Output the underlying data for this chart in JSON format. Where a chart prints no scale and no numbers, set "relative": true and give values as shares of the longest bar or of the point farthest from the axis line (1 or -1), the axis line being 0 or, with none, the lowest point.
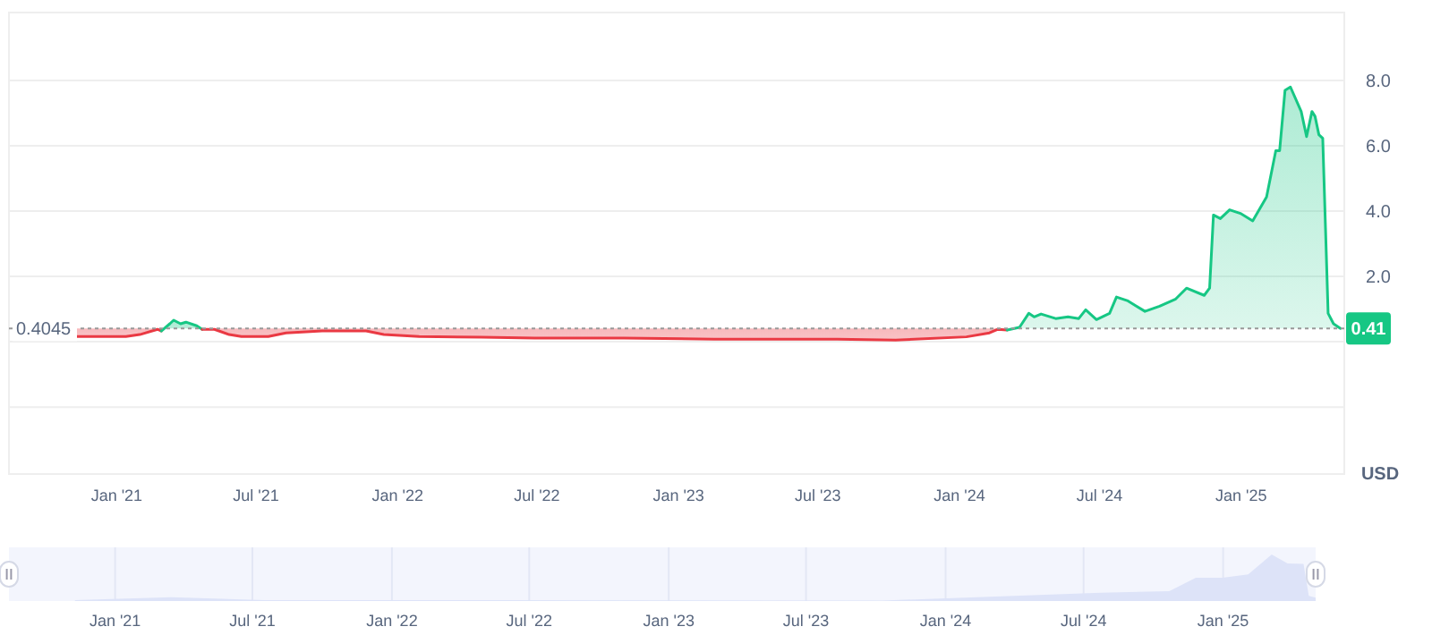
{
  "chart_data": [
    {
      "type": "line",
      "ylabel": "USD",
      "grid": "y",
      "series": [
        {
          "color": "#ea3943",
          "x": [
            "2020-11-09",
            "2021-01-13",
            "2021-01-31",
            "2021-02-23",
            "2021-02-28"
          ],
          "values": [
            0.16,
            0.16,
            0.22,
            0.38,
            0.33
          ],
          "lower": [
            0.16,
            0.16,
            0.22,
            0.38,
            0.33
          ],
          "upper": [
            0.4045,
            0.4045,
            0.4045,
            0.4045,
            0.4045
          ]
        },
        {
          "color": "#16c784",
          "x": [
            "2021-02-28",
            "2021-03-11",
            "2021-03-16",
            "2021-03-25",
            "2021-04-01",
            "2021-04-15",
            "2021-04-22"
          ],
          "values": [
            0.33,
            0.55,
            0.66,
            0.55,
            0.6,
            0.49,
            0.38
          ],
          "lower": [
            0.4045,
            0.4045,
            0.4045,
            0.4045,
            0.4045,
            0.4045,
            0.4045
          ],
          "upper": [
            0.33,
            0.55,
            0.66,
            0.55,
            0.6,
            0.49,
            0.38
          ]
        },
        {
          "color": "#ea3943",
          "x": [
            "2021-04-22",
            "2021-05-08",
            "2021-05-27",
            "2021-06-12",
            "2021-07-17",
            "2021-08-09",
            "2021-09-25",
            "2021-11-21",
            "2021-12-14",
            "2022-01-29",
            "2022-04-20",
            "2022-06-28",
            "2022-10-22",
            "2023-02-16",
            "2023-07-26",
            "2023-10-10",
            "2024-01-10",
            "2024-02-09",
            "2024-02-20",
            "2024-03-03"
          ],
          "values": [
            0.38,
            0.38,
            0.22,
            0.16,
            0.16,
            0.27,
            0.33,
            0.33,
            0.22,
            0.16,
            0.14,
            0.11,
            0.11,
            0.08,
            0.08,
            0.05,
            0.15,
            0.27,
            0.38,
            0.36
          ],
          "lower": [
            0.38,
            0.38,
            0.22,
            0.16,
            0.16,
            0.27,
            0.33,
            0.33,
            0.22,
            0.16,
            0.14,
            0.11,
            0.11,
            0.08,
            0.08,
            0.05,
            0.15,
            0.27,
            0.38,
            0.36
          ],
          "upper": [
            0.4045,
            0.4045,
            0.4045,
            0.4045,
            0.4045,
            0.4045,
            0.4045,
            0.4045,
            0.4045,
            0.4045,
            0.4045,
            0.4045,
            0.4045,
            0.4045,
            0.4045,
            0.4045,
            0.4045,
            0.4045,
            0.4045,
            0.4045
          ]
        },
        {
          "color": "#16c784",
          "x": [
            "2024-03-03",
            "2024-03-19",
            "2024-03-31",
            "2024-04-07",
            "2024-04-16",
            "2024-05-05",
            "2024-05-21",
            "2024-06-04",
            "2024-06-13",
            "2024-06-27",
            "2024-07-14",
            "2024-07-23",
            "2024-08-06",
            "2024-08-29",
            "2024-09-17",
            "2024-10-08",
            "2024-10-22",
            "2024-11-14",
            "2024-11-21",
            "2024-11-26",
            "2024-12-05",
            "2024-12-17",
            "2024-12-31",
            "2025-01-16",
            "2025-02-03",
            "2025-02-15",
            "2025-02-20",
            "2025-02-27",
            "2025-03-06",
            "2025-03-20",
            "2025-03-27",
            "2025-04-03",
            "2025-04-07",
            "2025-04-12",
            "2025-04-17",
            "2025-04-24",
            "2025-05-01",
            "2025-05-10"
          ],
          "values": [
            0.36,
            0.44,
            0.87,
            0.76,
            0.85,
            0.71,
            0.76,
            0.71,
            0.98,
            0.68,
            0.87,
            1.37,
            1.26,
            0.93,
            1.09,
            1.31,
            1.64,
            1.42,
            1.64,
            3.88,
            3.77,
            4.04,
            3.93,
            3.7,
            4.43,
            5.85,
            5.85,
            7.7,
            7.8,
            7.05,
            6.28,
            7.05,
            6.9,
            6.34,
            6.23,
            0.87,
            0.55,
            0.41
          ],
          "lower": [
            0.4045,
            0.4045,
            0.4045,
            0.4045,
            0.4045,
            0.4045,
            0.4045,
            0.4045,
            0.4045,
            0.4045,
            0.4045,
            0.4045,
            0.4045,
            0.4045,
            0.4045,
            0.4045,
            0.4045,
            0.4045,
            0.4045,
            0.4045,
            0.4045,
            0.4045,
            0.4045,
            0.4045,
            0.4045,
            0.4045,
            0.4045,
            0.4045,
            0.4045,
            0.4045,
            0.4045,
            0.4045,
            0.4045,
            0.4045,
            0.4045,
            0.4045,
            0.4045,
            0.4045
          ],
          "upper": [
            0.36,
            0.44,
            0.87,
            0.76,
            0.85,
            0.71,
            0.76,
            0.71,
            0.98,
            0.68,
            0.87,
            1.37,
            1.26,
            0.93,
            1.09,
            1.31,
            1.64,
            1.42,
            1.64,
            3.88,
            3.77,
            4.04,
            3.93,
            3.7,
            4.43,
            5.85,
            5.85,
            7.7,
            7.8,
            7.05,
            6.28,
            7.05,
            6.9,
            6.34,
            6.23,
            0.87,
            0.55,
            0.41
          ]
        }
      ],
      "xlim": [
        "2020-08-14",
        "2025-05-15"
      ],
      "xticks": [
        {
          "value": "2021-01-01",
          "label": "Jan '21"
        },
        {
          "value": "2021-07-01",
          "label": "Jul '21"
        },
        {
          "value": "2022-01-01",
          "label": "Jan '22"
        },
        {
          "value": "2022-07-01",
          "label": "Jul '22"
        },
        {
          "value": "2023-01-01",
          "label": "Jan '23"
        },
        {
          "value": "2023-07-01",
          "label": "Jul '23"
        },
        {
          "value": "2024-01-01",
          "label": "Jan '24"
        },
        {
          "value": "2024-07-01",
          "label": "Jul '24"
        },
        {
          "value": "2025-01-01",
          "label": "Jan '25"
        }
      ],
      "ylim": [
        -4.05,
        10.08
      ],
      "yticks": [
        {
          "value": -2,
          "label": null
        },
        {
          "value": 0,
          "label": null
        },
        {
          "value": 2,
          "label": "2.0"
        },
        {
          "value": 4,
          "label": "4.0"
        },
        {
          "value": 6,
          "label": "6.0"
        },
        {
          "value": 8,
          "label": "8.0"
        }
      ],
      "ref_lines": [
        {
          "axis": "y",
          "value": 0.4045,
          "label": "0.4045",
          "color": "#999999",
          "line_style": "dotted"
        }
      ],
      "annotations": [
        {
          "text": "0.41",
          "x": "2025-05-10",
          "y": 0.41
        }
      ]
    },
    {
      "type": "area",
      "relative": true,
      "tick_labels": "x",
      "grid": "x",
      "color": "#dde3f8",
      "x": [
        "2020-11-09",
        "2021-03-16",
        "2021-07-17",
        "2023-10-10",
        "2024-03-31",
        "2024-07-23",
        "2024-10-22",
        "2024-11-26",
        "2024-12-31",
        "2025-02-03",
        "2025-03-06",
        "2025-03-27",
        "2025-04-17",
        "2025-04-24",
        "2025-05-03"
      ],
      "values": [
        0.02,
        0.08,
        0.02,
        0.01,
        0.11,
        0.18,
        0.21,
        0.5,
        0.5,
        0.57,
        1,
        0.81,
        0.8,
        0.11,
        0.07
      ],
      "xlim": [
        "2020-08-14",
        "2025-05-03"
      ],
      "xticks": [
        {
          "value": "2021-01-01",
          "label": "Jan '21"
        },
        {
          "value": "2021-07-01",
          "label": "Jul '21"
        },
        {
          "value": "2022-01-01",
          "label": "Jan '22"
        },
        {
          "value": "2022-07-01",
          "label": "Jul '22"
        },
        {
          "value": "2023-01-01",
          "label": "Jan '23"
        },
        {
          "value": "2023-07-01",
          "label": "Jul '23"
        },
        {
          "value": "2024-01-01",
          "label": "Jan '24"
        },
        {
          "value": "2024-07-01",
          "label": "Jul '24"
        },
        {
          "value": "2025-01-01",
          "label": "Jan '25"
        }
      ]
    }
  ]
}
